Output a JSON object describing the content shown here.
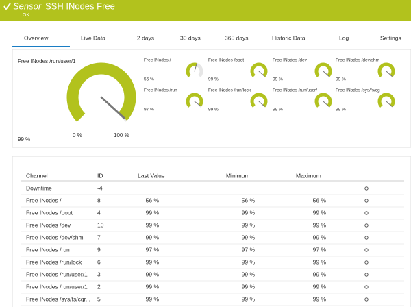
{
  "header": {
    "sensor_label": "Sensor",
    "title": "SSH INodes Free",
    "status": "OK"
  },
  "tabs": [
    "Overview",
    "Live Data",
    "2 days",
    "30 days",
    "365 days",
    "Historic Data",
    "Log",
    "Settings"
  ],
  "gauge_scale": [
    {
      "value": 0,
      "label": "0 %"
    },
    {
      "value": 100,
      "label": "100 %"
    }
  ],
  "main_gauge": {
    "title": "Free INodes /run/user/1",
    "value": 99,
    "value_label": "99 %"
  },
  "gauges": [
    {
      "title": "Free INodes /",
      "value": 56,
      "value_label": "56 %"
    },
    {
      "title": "Free INodes /boot",
      "value": 99,
      "value_label": "99 %"
    },
    {
      "title": "Free INodes /dev",
      "value": 99,
      "value_label": "99 %"
    },
    {
      "title": "Free INodes /dev/shm",
      "value": 99,
      "value_label": "99 %"
    },
    {
      "title": "Free INodes /run",
      "value": 97,
      "value_label": "97 %"
    },
    {
      "title": "Free INodes /run/lock",
      "value": 99,
      "value_label": "99 %"
    },
    {
      "title": "Free INodes /run/user/",
      "value": 99,
      "value_label": "99 %"
    },
    {
      "title": "Free INodes /sys/fs/cg",
      "value": 99,
      "value_label": "99 %"
    }
  ],
  "table": {
    "columns": [
      "Channel",
      "ID",
      "Last Value",
      "Minimum",
      "Maximum"
    ],
    "rows": [
      {
        "channel": "Downtime",
        "id": "-4"
      },
      {
        "channel": "Free INodes /",
        "id": "8",
        "last": "56 %",
        "min": "56 %",
        "max": "56 %"
      },
      {
        "channel": "Free INodes /boot",
        "id": "4",
        "last": "99 %",
        "min": "99 %",
        "max": "99 %"
      },
      {
        "channel": "Free INodes /dev",
        "id": "10",
        "last": "99 %",
        "min": "99 %",
        "max": "99 %"
      },
      {
        "channel": "Free INodes /dev/shm",
        "id": "7",
        "last": "99 %",
        "min": "99 %",
        "max": "99 %"
      },
      {
        "channel": "Free INodes /run",
        "id": "9",
        "last": "97 %",
        "min": "97 %",
        "max": "97 %"
      },
      {
        "channel": "Free INodes /run/lock",
        "id": "6",
        "last": "99 %",
        "min": "99 %",
        "max": "99 %"
      },
      {
        "channel": "Free INodes /run/user/1",
        "id": "3",
        "last": "99 %",
        "min": "99 %",
        "max": "99 %"
      },
      {
        "channel": "Free INodes /run/user/1",
        "id": "2",
        "last": "99 %",
        "min": "99 %",
        "max": "99 %"
      },
      {
        "channel": "Free INodes /sys/fs/cgr...",
        "id": "5",
        "last": "99 %",
        "min": "99 %",
        "max": "99 %"
      }
    ]
  }
}
